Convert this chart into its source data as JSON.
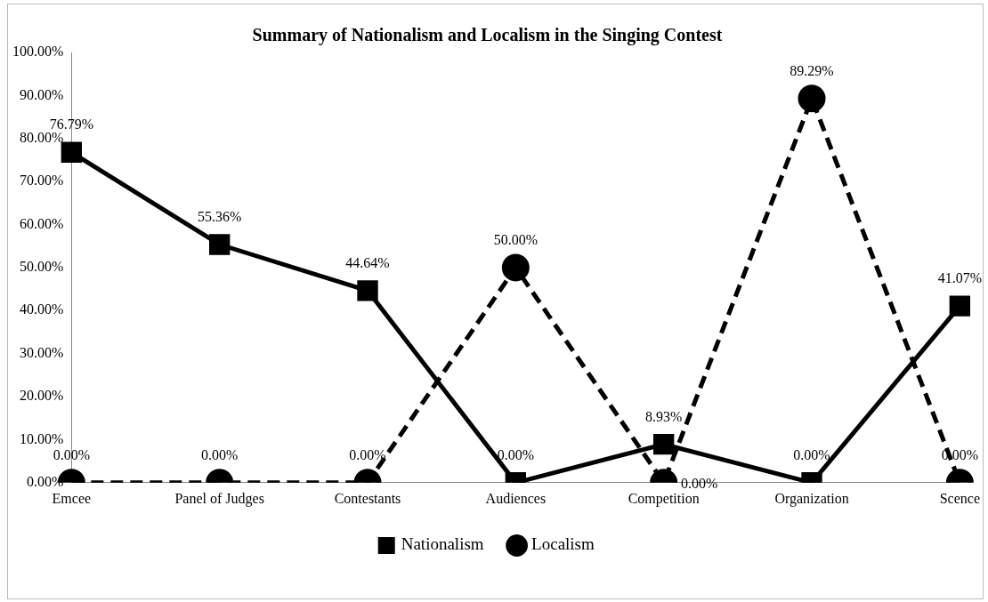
{
  "chart_data": {
    "type": "line",
    "title": "Summary of Nationalism and Localism in the Singing Contest",
    "categories": [
      "Emcee",
      "Panel of Judges",
      "Contestants",
      "Audiences",
      "Competition",
      "Organization",
      "Scence"
    ],
    "series": [
      {
        "name": "Nationalism",
        "color": "#000000",
        "marker": "square",
        "line_style": "solid",
        "values": [
          76.79,
          55.36,
          44.64,
          0,
          8.93,
          0,
          41.07
        ],
        "value_labels": [
          "76.79%",
          "55.36%",
          "44.64%",
          "0.00%",
          "8.93%",
          "0.00%",
          "41.07%"
        ]
      },
      {
        "name": "Localism",
        "color": "#000000",
        "marker": "circle",
        "line_style": "dashed",
        "values": [
          0,
          0,
          0,
          50,
          0,
          89.29,
          0
        ],
        "value_labels": [
          "0.00%",
          "0.00%",
          "0.00%",
          "50.00%",
          "0.00%",
          "89.29%",
          "0.00%"
        ]
      }
    ],
    "ylim": [
      0,
      100
    ],
    "yticks": [
      {
        "value": 0,
        "label": "0.00%"
      },
      {
        "value": 10,
        "label": "10.00%"
      },
      {
        "value": 20,
        "label": "20.00%"
      },
      {
        "value": 30,
        "label": "30.00%"
      },
      {
        "value": 40,
        "label": "40.00%"
      },
      {
        "value": 50,
        "label": "50.00%"
      },
      {
        "value": 60,
        "label": "60.00%"
      },
      {
        "value": 70,
        "label": "70.00%"
      },
      {
        "value": 80,
        "label": "80.00%"
      },
      {
        "value": 90,
        "label": "90.00%"
      },
      {
        "value": 100,
        "label": "100.00%"
      }
    ],
    "grid": false,
    "legend": "bottom"
  }
}
